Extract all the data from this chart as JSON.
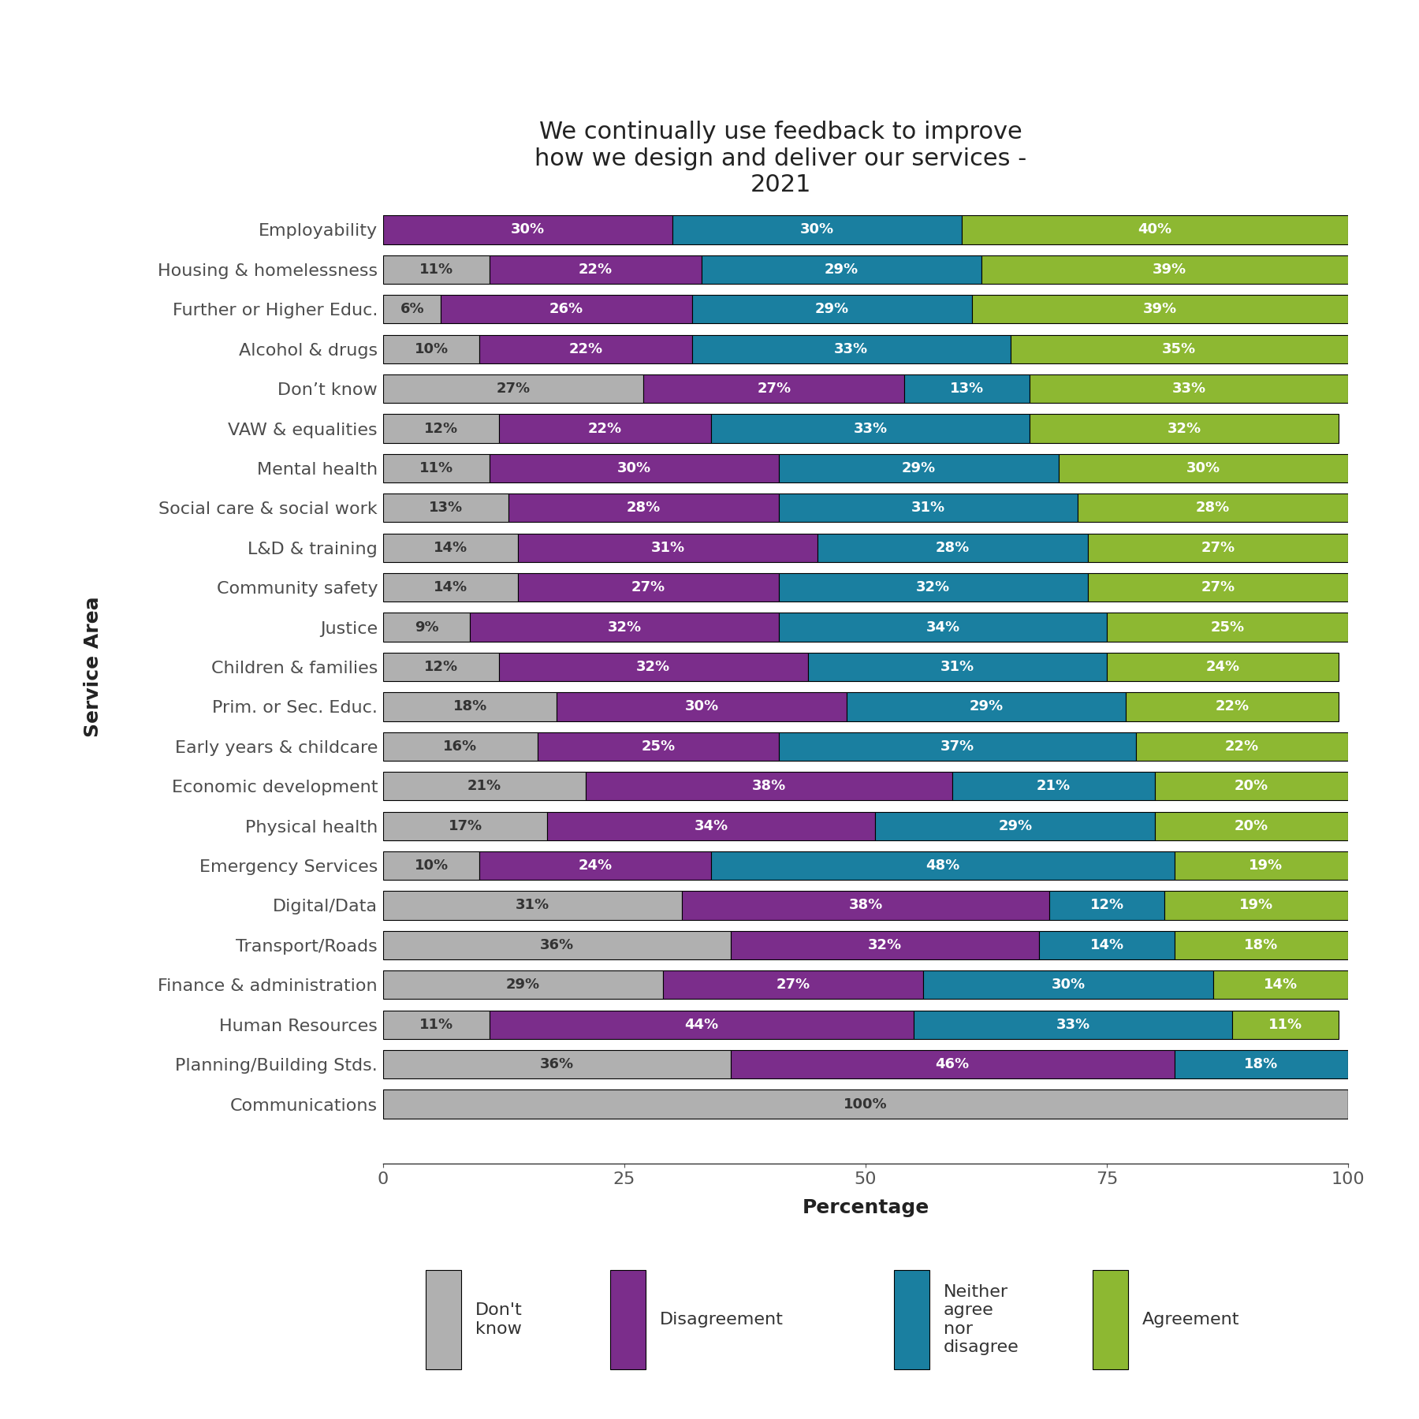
{
  "title": "We continually use feedback to improve\nhow we design and deliver our services -\n2021",
  "xlabel": "Percentage",
  "ylabel": "Service Area",
  "categories": [
    "Employability",
    "Housing & homelessness",
    "Further or Higher Educ.",
    "Alcohol & drugs",
    "Don’t know",
    "VAW & equalities",
    "Mental health",
    "Social care & social work",
    "L&D & training",
    "Community safety",
    "Justice",
    "Children & families",
    "Prim. or Sec. Educ.",
    "Early years & childcare",
    "Economic development",
    "Physical health",
    "Emergency Services",
    "Digital/Data",
    "Transport/Roads",
    "Finance & administration",
    "Human Resources",
    "Planning/Building Stds.",
    "Communications"
  ],
  "dont_know": [
    0,
    11,
    6,
    10,
    27,
    12,
    11,
    13,
    14,
    14,
    9,
    12,
    18,
    16,
    21,
    17,
    10,
    31,
    36,
    29,
    11,
    36,
    100
  ],
  "disagreement": [
    30,
    22,
    26,
    22,
    27,
    22,
    30,
    28,
    31,
    27,
    32,
    32,
    30,
    25,
    38,
    34,
    24,
    38,
    32,
    27,
    44,
    46,
    0
  ],
  "neither": [
    30,
    29,
    29,
    33,
    13,
    33,
    29,
    31,
    28,
    32,
    34,
    31,
    29,
    37,
    21,
    29,
    48,
    12,
    14,
    30,
    33,
    18,
    0
  ],
  "agreement": [
    40,
    39,
    39,
    35,
    33,
    32,
    30,
    28,
    27,
    27,
    25,
    24,
    22,
    22,
    20,
    20,
    19,
    19,
    18,
    14,
    11,
    0,
    0
  ],
  "color_dont_know": "#b0b0b0",
  "color_disagreement": "#7b2d8b",
  "color_neither": "#1a7fa0",
  "color_agreement": "#8db832",
  "bar_height": 0.72,
  "xlim": [
    0,
    100
  ],
  "xticks": [
    0,
    25,
    50,
    75,
    100
  ],
  "title_fontsize": 22,
  "axis_label_fontsize": 18,
  "tick_fontsize": 16,
  "bar_text_fontsize": 13,
  "legend_fontsize": 16,
  "figsize": [
    18,
    18
  ]
}
